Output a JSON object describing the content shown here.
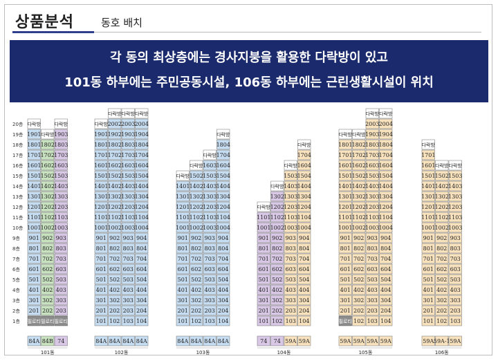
{
  "header": {
    "title": "상품분석",
    "subtitle": "동호 배치"
  },
  "banner": {
    "line1": "각 동의 최상층에는 경사지붕을 활용한 다락방이 있고",
    "line2": "101동 하부에는 주민공동시설, 106동 하부에는 근린생활시설이 위치"
  },
  "colors": {
    "banner_bg": "#1a2a6c",
    "type_84A": "#c6dcf0",
    "type_84B": "#c8e2c0",
    "type_74": "#d8c8e6",
    "type_59A": "#f8e2be",
    "type_59A1": "#f8e2be",
    "piloti": "#8c8c8c",
    "attic": "#ffffff"
  },
  "chart_data": {
    "type": "table",
    "floors": [
      "1층",
      "2층",
      "3층",
      "4층",
      "5층",
      "6층",
      "7층",
      "8층",
      "9층",
      "10층",
      "11층",
      "12층",
      "13층",
      "14층",
      "15층",
      "16층",
      "17층",
      "18층",
      "19층",
      "20층"
    ],
    "attic_label": "다락방",
    "piloti_label": "필로티",
    "buildings": [
      {
        "name": "101동",
        "columns": [
          {
            "type": "84A",
            "line": 1,
            "top": 19,
            "piloti": true
          },
          {
            "type": "84B",
            "line": 2,
            "top": 18,
            "piloti": true
          },
          {
            "type": "74",
            "line": 3,
            "top": 19,
            "piloti": true
          }
        ]
      },
      {
        "name": "102동",
        "columns": [
          {
            "type": "84A",
            "line": 1,
            "top": 19
          },
          {
            "type": "84A",
            "line": 2,
            "top": 20
          },
          {
            "type": "84A",
            "line": 3,
            "top": 20
          },
          {
            "type": "84A",
            "line": 4,
            "top": 20
          }
        ]
      },
      {
        "name": "103동",
        "columns": [
          {
            "type": "84A",
            "line": 1,
            "top": 14
          },
          {
            "type": "84A",
            "line": 2,
            "top": 15
          },
          {
            "type": "84A",
            "line": 3,
            "top": 16
          },
          {
            "type": "84A",
            "line": 4,
            "top": 18
          }
        ]
      },
      {
        "name": "104동",
        "columns": [
          {
            "type": "74",
            "line": 1,
            "top": 11
          },
          {
            "type": "74",
            "line": 2,
            "top": 13
          },
          {
            "type": "59A",
            "line": 3,
            "top": 15
          },
          {
            "type": "59A",
            "line": 4,
            "top": 17
          }
        ]
      },
      {
        "name": "105동",
        "columns": [
          {
            "type": "59A",
            "line": 1,
            "top": 18,
            "piloti": true
          },
          {
            "type": "59A",
            "line": 2,
            "top": 18
          },
          {
            "type": "59A",
            "line": 3,
            "top": 20
          },
          {
            "type": "59A",
            "line": 4,
            "top": 20
          }
        ]
      },
      {
        "name": "106동",
        "columns": [
          {
            "type": "59A",
            "line": 1,
            "top": 17
          },
          {
            "type": "59A-1",
            "line": 2,
            "top": 15
          },
          {
            "type": "59A",
            "line": 3,
            "top": 15
          }
        ]
      }
    ]
  }
}
